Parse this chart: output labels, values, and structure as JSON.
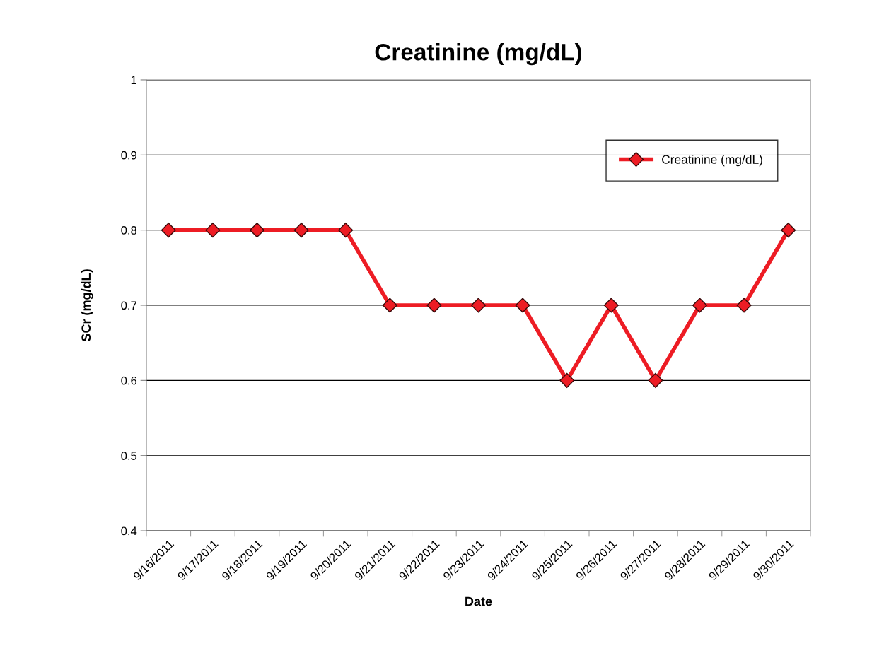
{
  "chart_data": {
    "type": "line",
    "title": "Creatinine (mg/dL)",
    "xlabel": "Date",
    "ylabel": "SCr (mg/dL)",
    "categories": [
      "9/16/2011",
      "9/17/2011",
      "9/18/2011",
      "9/19/2011",
      "9/20/2011",
      "9/21/2011",
      "9/22/2011",
      "9/23/2011",
      "9/24/2011",
      "9/25/2011",
      "9/26/2011",
      "9/27/2011",
      "9/28/2011",
      "9/29/2011",
      "9/30/2011"
    ],
    "series": [
      {
        "name": "Creatinine (mg/dL)",
        "color": "#ed1c24",
        "values": [
          0.8,
          0.8,
          0.8,
          0.8,
          0.8,
          0.7,
          0.7,
          0.7,
          0.7,
          0.6,
          0.7,
          0.6,
          0.7,
          0.7,
          0.8
        ]
      }
    ],
    "ylim": [
      0.4,
      1
    ],
    "yticks": [
      0.4,
      0.5,
      0.6,
      0.7,
      0.8,
      0.9,
      1
    ],
    "grid": "y",
    "legend": "top right",
    "marker": "diamond",
    "line_style": "solid"
  }
}
